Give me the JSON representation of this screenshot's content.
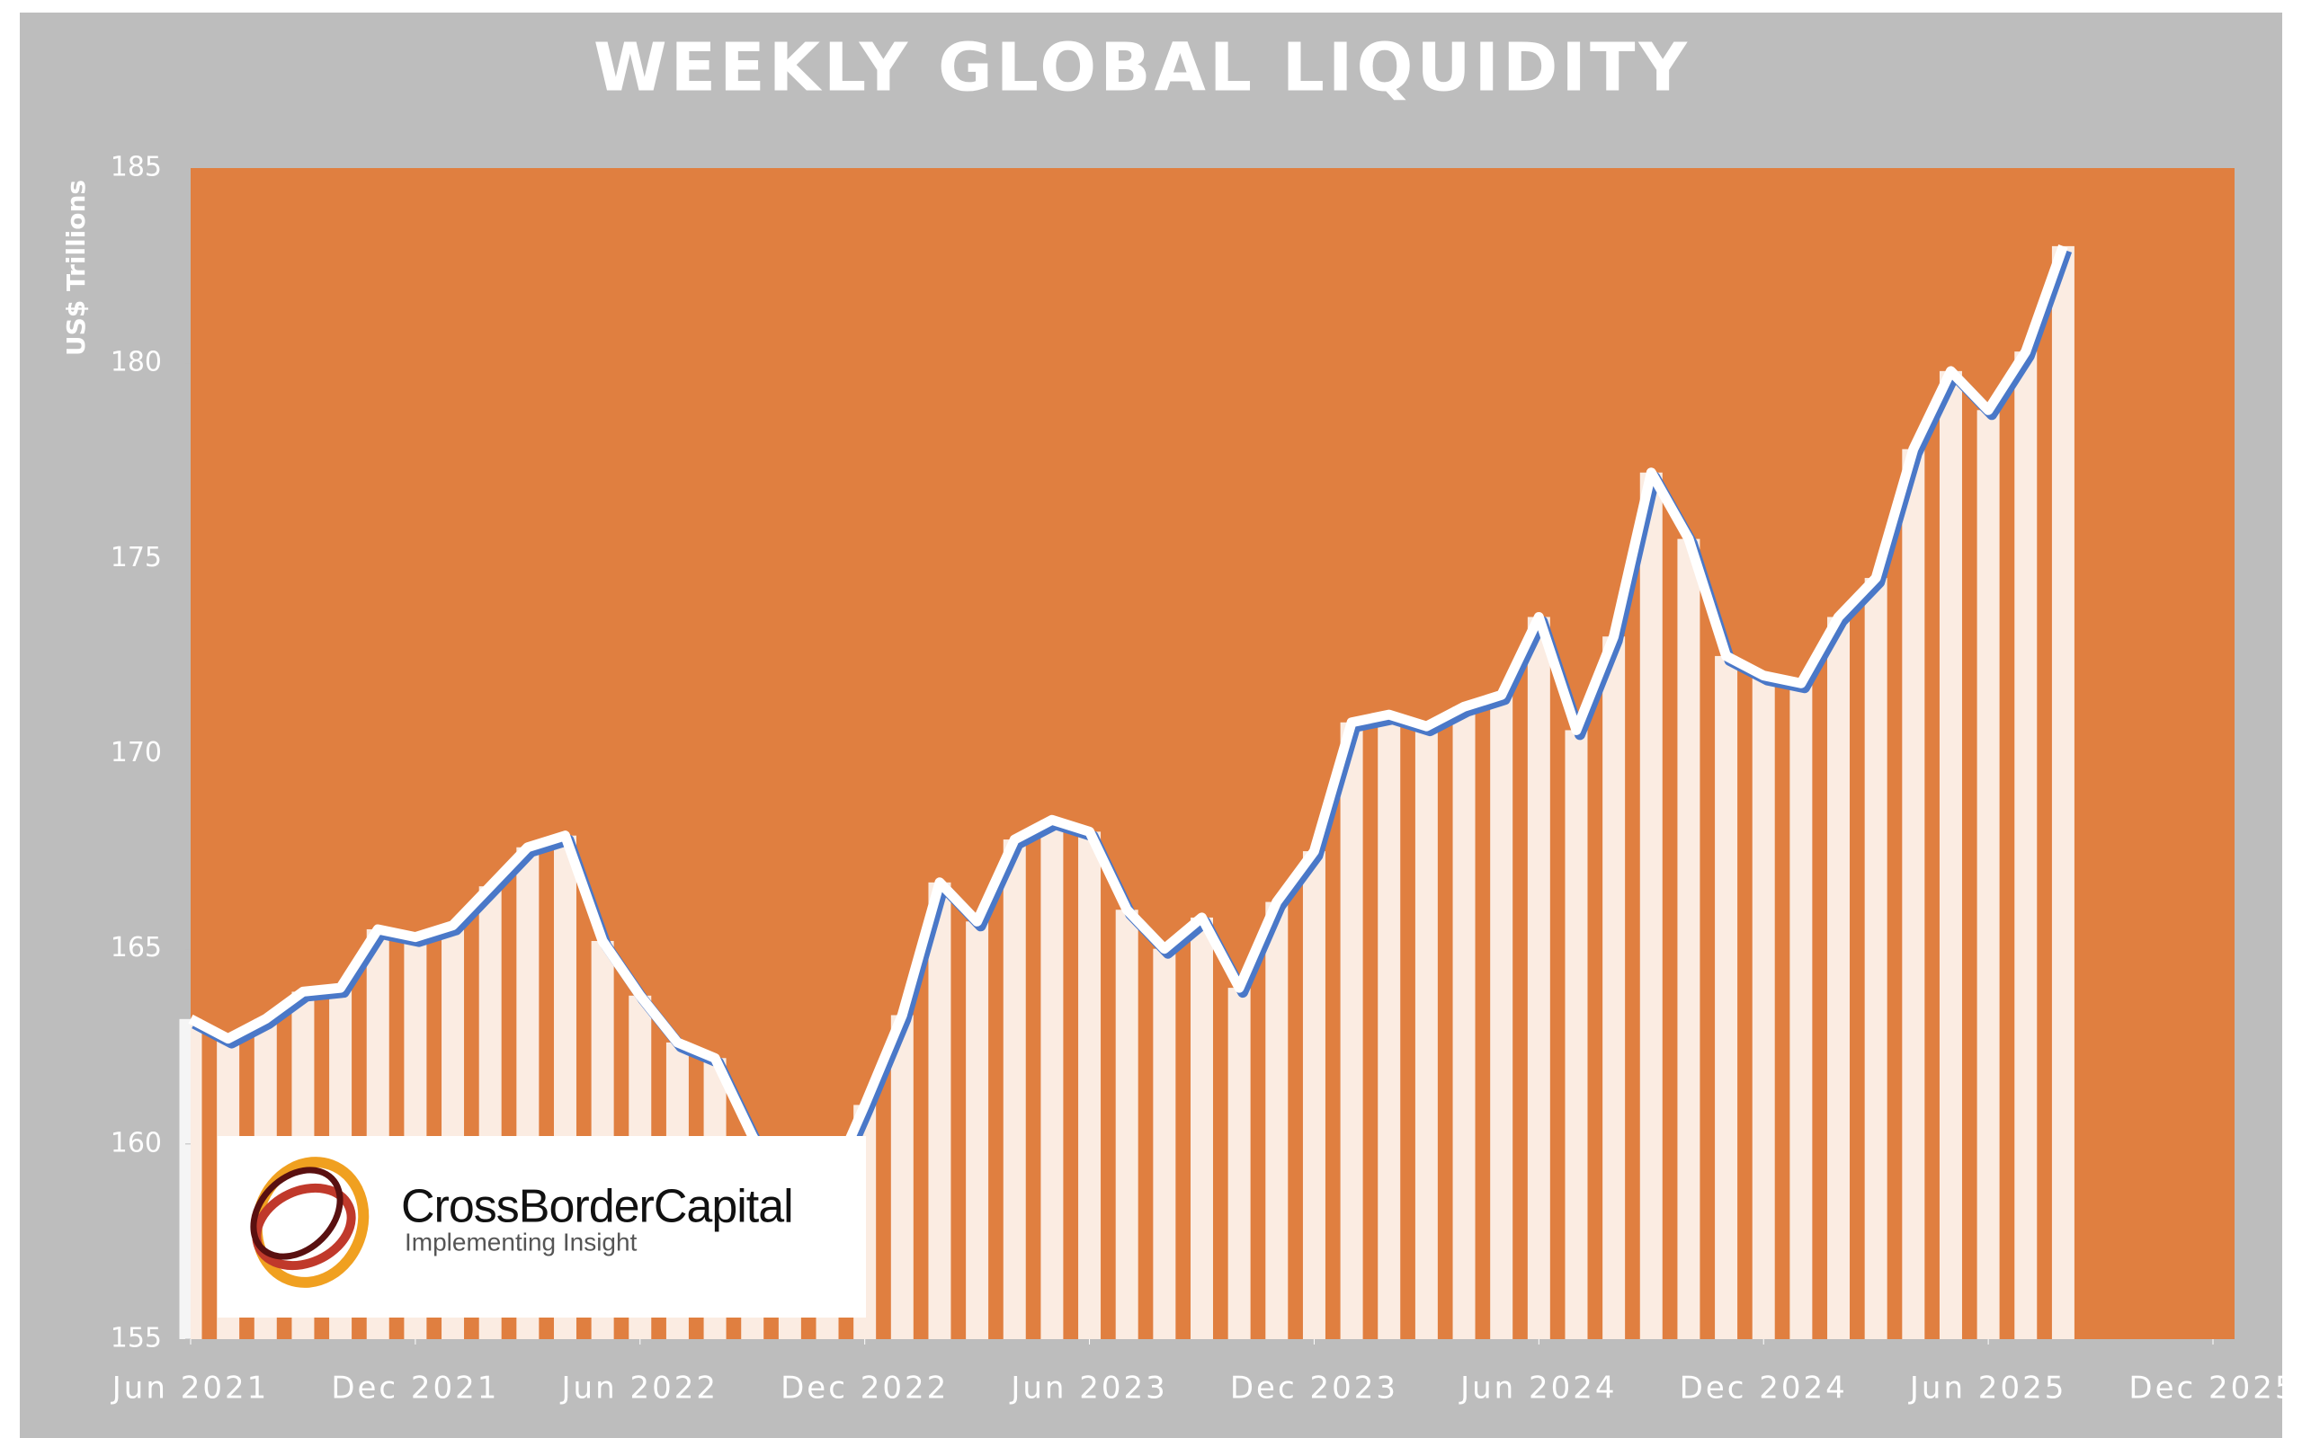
{
  "chart_data": {
    "type": "line",
    "title": "WEEKLY GLOBAL LIQUIDITY",
    "y_label": "US$ Trillions",
    "x": [
      "2021-06",
      "2021-07",
      "2021-08",
      "2021-09",
      "2021-10",
      "2021-11",
      "2021-12",
      "2022-01",
      "2022-02",
      "2022-03",
      "2022-04",
      "2022-05",
      "2022-06",
      "2022-07",
      "2022-08",
      "2022-09",
      "2022-10",
      "2022-11",
      "2022-12",
      "2023-01",
      "2023-02",
      "2023-03",
      "2023-04",
      "2023-05",
      "2023-06",
      "2023-07",
      "2023-08",
      "2023-09",
      "2023-10",
      "2023-11",
      "2023-12",
      "2024-01",
      "2024-02",
      "2024-03",
      "2024-04",
      "2024-05",
      "2024-06",
      "2024-07",
      "2024-08",
      "2024-09",
      "2024-10",
      "2024-11",
      "2024-12",
      "2025-01",
      "2025-02",
      "2025-03",
      "2025-04",
      "2025-05",
      "2025-06",
      "2025-07",
      "2025-08"
    ],
    "series": [
      {
        "name": "Global Liquidity",
        "color": "#ffffff",
        "shadow_color": "#4a78c8",
        "values": [
          163.2,
          162.7,
          163.2,
          163.9,
          164.0,
          165.5,
          165.3,
          165.6,
          166.6,
          167.6,
          167.9,
          165.2,
          163.8,
          162.6,
          162.2,
          160.2,
          158.5,
          158.8,
          161.0,
          163.3,
          166.7,
          165.7,
          167.8,
          168.3,
          168.0,
          166.0,
          165.0,
          165.8,
          164.0,
          166.2,
          167.5,
          170.8,
          171.0,
          170.7,
          171.2,
          171.5,
          173.5,
          170.6,
          173.0,
          177.2,
          175.5,
          172.5,
          172.0,
          171.8,
          173.5,
          174.5,
          177.8,
          179.8,
          178.8,
          180.3,
          183.0
        ]
      }
    ],
    "xlim": [
      "2021-06",
      "2025-12"
    ],
    "xticks": [
      {
        "value": "2021-06",
        "label": "Jun 2021"
      },
      {
        "value": "2021-12",
        "label": "Dec 2021"
      },
      {
        "value": "2022-06",
        "label": "Jun 2022"
      },
      {
        "value": "2022-12",
        "label": "Dec 2022"
      },
      {
        "value": "2023-06",
        "label": "Jun 2023"
      },
      {
        "value": "2023-12",
        "label": "Dec 2023"
      },
      {
        "value": "2024-06",
        "label": "Jun 2024"
      },
      {
        "value": "2024-12",
        "label": "Dec 2024"
      },
      {
        "value": "2025-06",
        "label": "Jun 2025"
      },
      {
        "value": "2025-12",
        "label": "Dec 2025"
      }
    ],
    "ylim": [
      155,
      185
    ],
    "yticks": [
      155,
      160,
      165,
      170,
      175,
      180,
      185
    ],
    "background_color": "#e07f40",
    "logo": {
      "name": "CrossBorderCapital",
      "tagline": "Implementing Insight"
    }
  }
}
